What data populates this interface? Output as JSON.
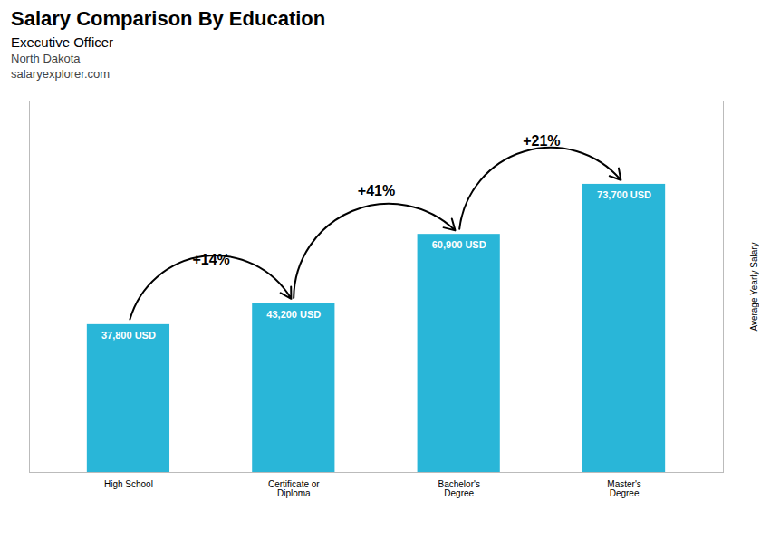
{
  "chart_data": {
    "type": "bar",
    "title": "Salary Comparison By Education",
    "subtitle": "Executive Officer",
    "categories": [
      "High School",
      "Certificate or\nDiploma",
      "Bachelor's\nDegree",
      "Master's\nDegree"
    ],
    "values": [
      37800,
      43200,
      60900,
      73700
    ],
    "value_labels": [
      "37,800 USD",
      "43,200 USD",
      "60,900 USD",
      "73,700 USD"
    ],
    "data_labels": true,
    "color": "#29b6d8",
    "ylim": [
      0,
      95000
    ],
    "ylabel": "Average Yearly Salary",
    "tick_labels": "x",
    "grid": false,
    "annotations": [
      {
        "text": "North Dakota"
      },
      {
        "text": "salaryexplorer.com"
      },
      {
        "text": "+14%",
        "from": "High School",
        "to": "Certificate or\nDiploma"
      },
      {
        "text": "+41%",
        "from": "Certificate or\nDiploma",
        "to": "Bachelor's\nDegree"
      },
      {
        "text": "+21%",
        "from": "Bachelor's\nDegree",
        "to": "Master's\nDegree"
      }
    ]
  }
}
